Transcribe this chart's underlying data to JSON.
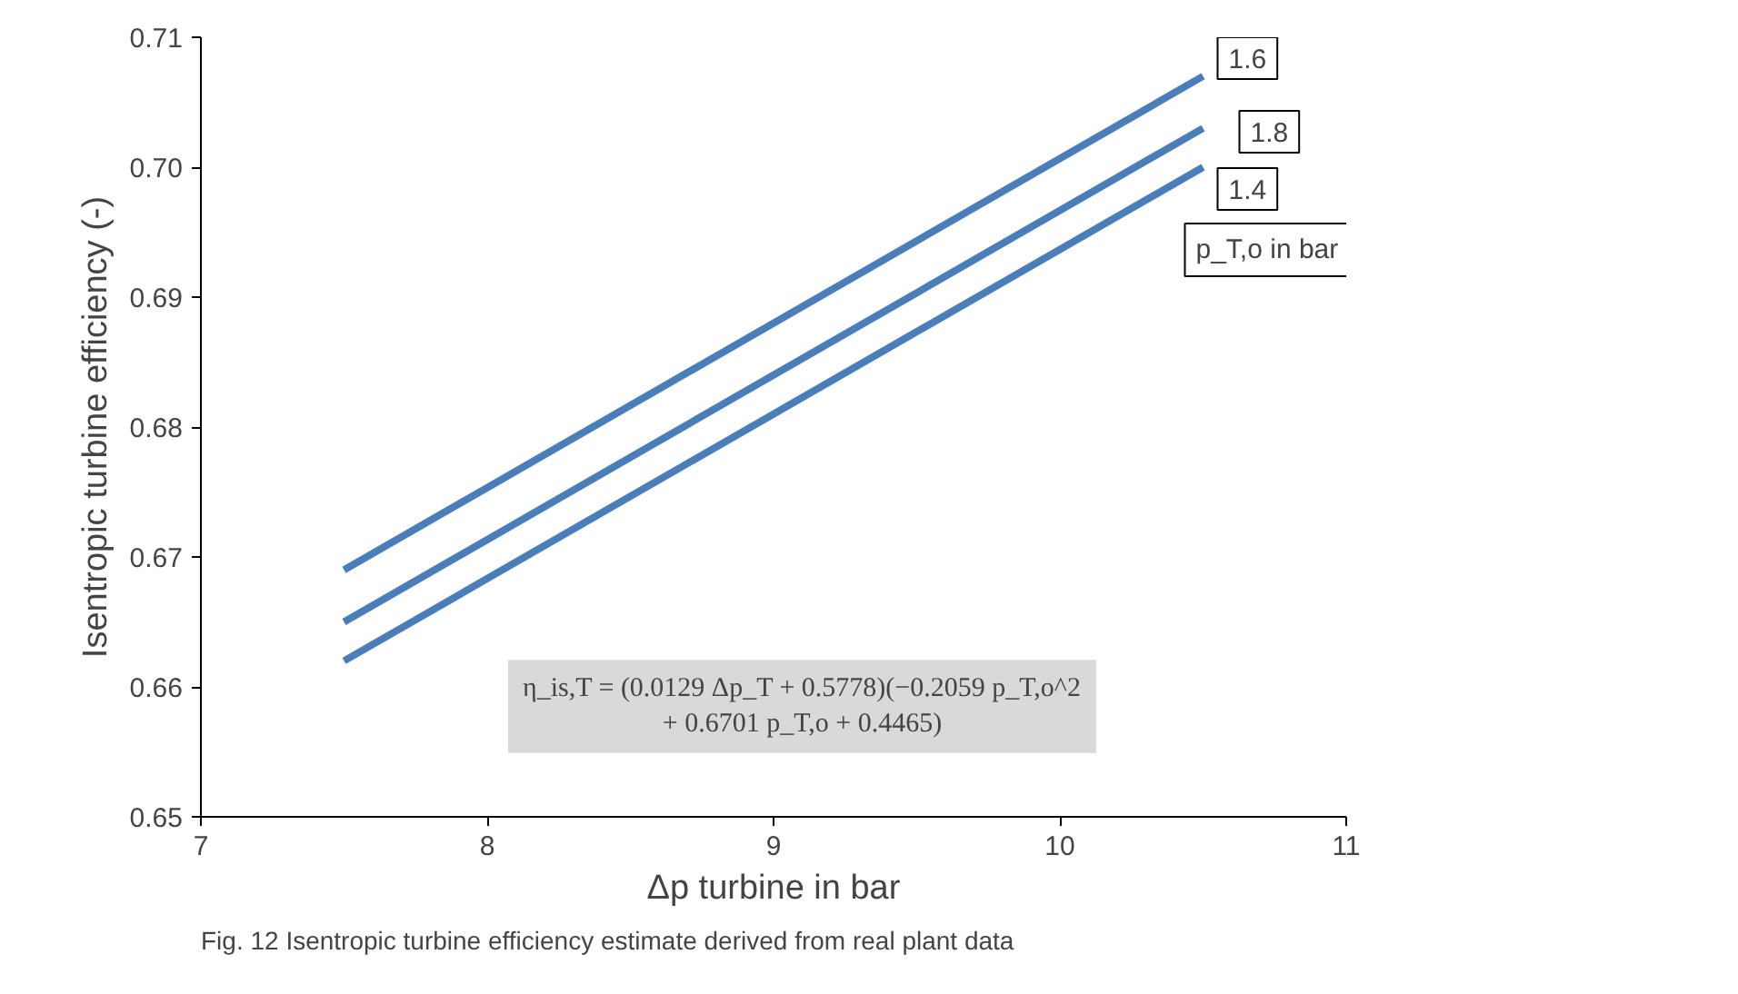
{
  "chart_data": {
    "type": "line",
    "xlabel": "Δp turbine in bar",
    "ylabel": "Isentropic turbine efficiency (-)",
    "legend_title": "p_T,o in bar",
    "x": [
      7.5,
      10.5
    ],
    "series": [
      {
        "name": "1.6",
        "color": "#4a7ebb",
        "values": [
          0.669,
          0.707
        ]
      },
      {
        "name": "1.8",
        "color": "#4a7ebb",
        "values": [
          0.665,
          0.703
        ]
      },
      {
        "name": "1.4",
        "color": "#4a7ebb",
        "values": [
          0.662,
          0.7
        ]
      }
    ],
    "xlim": [
      7,
      11
    ],
    "xticks": [
      7,
      8,
      9,
      10,
      11
    ],
    "ylim": [
      0.65,
      0.71
    ],
    "yticks": [
      {
        "value": 0.65,
        "label": "0.65"
      },
      {
        "value": 0.66,
        "label": "0.66"
      },
      {
        "value": 0.67,
        "label": "0.67"
      },
      {
        "value": 0.68,
        "label": "0.68"
      },
      {
        "value": 0.69,
        "label": "0.69"
      },
      {
        "value": 0.7,
        "label": "0.70"
      },
      {
        "value": 0.71,
        "label": "0.71"
      }
    ],
    "grid": false,
    "marker": "none",
    "line_style": "solid",
    "annotations": [
      "η_is,T = (0.0129 Δp_T + 0.5778)(−0.2059 p_T,o^2\n+ 0.6701 p_T,o + 0.4465)",
      "Fig. 12  Isentropic turbine efficiency estimate derived from real plant data"
    ]
  }
}
